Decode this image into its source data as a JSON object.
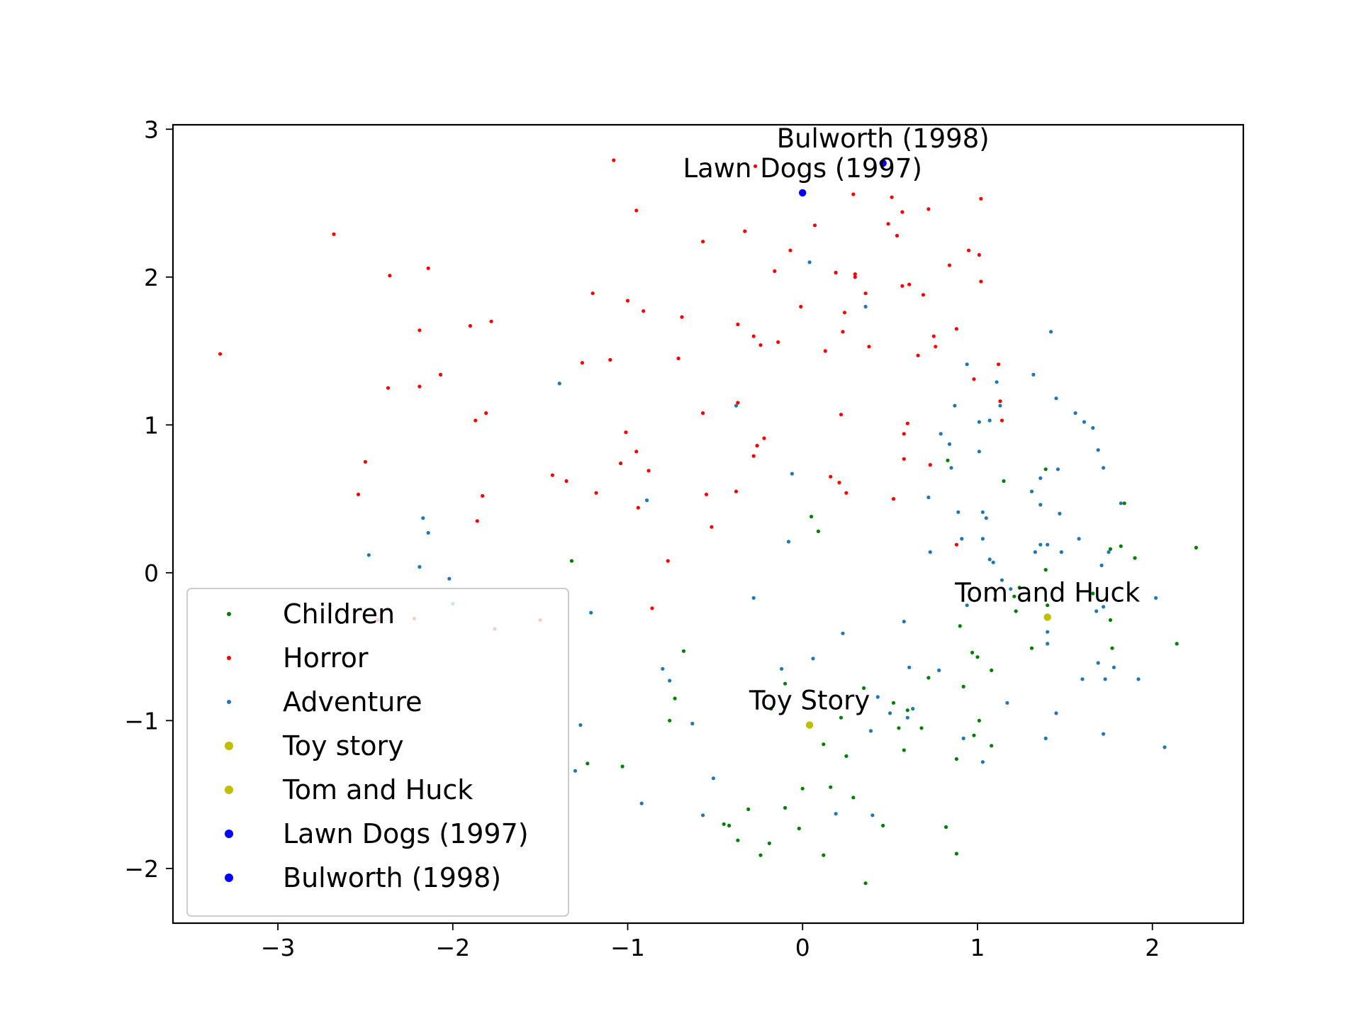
{
  "chart_data": {
    "type": "scatter",
    "title": "",
    "xlabel": "",
    "ylabel": "",
    "xlim": [
      -3.6,
      2.52
    ],
    "ylim": [
      -2.37,
      3.03
    ],
    "xticks": [
      -3,
      -2,
      -1,
      0,
      1,
      2
    ],
    "yticks": [
      -2,
      -1,
      0,
      1,
      2,
      3
    ],
    "xtick_labels": [
      "−3",
      "−2",
      "−1",
      "0",
      "1",
      "2"
    ],
    "ytick_labels": [
      "−2",
      "−1",
      "0",
      "1",
      "2",
      "3"
    ],
    "grid": false,
    "legend_position": "lower-left",
    "series": [
      {
        "name": "Children",
        "color": "#008000",
        "marker_size": "small",
        "points": [
          [
            0.05,
            0.38
          ],
          [
            0.09,
            0.28
          ],
          [
            -1.32,
            0.08
          ],
          [
            -0.68,
            -0.53
          ],
          [
            -0.76,
            -1.0
          ],
          [
            -0.73,
            -0.85
          ],
          [
            -0.1,
            -0.75
          ],
          [
            0.35,
            -0.78
          ],
          [
            0.52,
            -0.88
          ],
          [
            0.6,
            -0.93
          ],
          [
            0.22,
            -0.98
          ],
          [
            0.55,
            -1.05
          ],
          [
            0.68,
            -1.05
          ],
          [
            0.58,
            -1.2
          ],
          [
            0.12,
            -1.16
          ],
          [
            0.25,
            -1.24
          ],
          [
            -1.23,
            -1.29
          ],
          [
            -1.03,
            -1.31
          ],
          [
            0.0,
            -1.46
          ],
          [
            0.16,
            -1.45
          ],
          [
            0.29,
            -1.52
          ],
          [
            -0.1,
            -1.59
          ],
          [
            -0.31,
            -1.6
          ],
          [
            -0.45,
            -1.7
          ],
          [
            -0.42,
            -1.71
          ],
          [
            -0.02,
            -1.73
          ],
          [
            -0.37,
            -1.81
          ],
          [
            -0.19,
            -1.83
          ],
          [
            -0.24,
            -1.91
          ],
          [
            0.12,
            -1.91
          ],
          [
            0.36,
            -2.1
          ],
          [
            0.46,
            -1.71
          ],
          [
            0.82,
            -1.72
          ],
          [
            0.88,
            -1.9
          ],
          [
            0.83,
            0.76
          ],
          [
            1.15,
            0.62
          ],
          [
            1.39,
            0.7
          ],
          [
            1.84,
            0.47
          ],
          [
            1.82,
            0.18
          ],
          [
            1.76,
            0.16
          ],
          [
            1.9,
            0.1
          ],
          [
            2.25,
            0.17
          ],
          [
            1.39,
            0.02
          ],
          [
            1.24,
            -0.1
          ],
          [
            1.21,
            -0.16
          ],
          [
            1.22,
            -0.26
          ],
          [
            1.4,
            -0.22
          ],
          [
            1.66,
            -0.14
          ],
          [
            1.76,
            -0.32
          ],
          [
            1.77,
            -0.51
          ],
          [
            2.14,
            -0.48
          ],
          [
            1.31,
            -0.51
          ],
          [
            0.9,
            -0.36
          ],
          [
            0.97,
            -0.54
          ],
          [
            1.0,
            -0.57
          ],
          [
            1.08,
            -0.66
          ],
          [
            0.72,
            -0.71
          ],
          [
            0.92,
            -0.77
          ],
          [
            1.01,
            -1.0
          ],
          [
            0.98,
            -1.1
          ],
          [
            0.88,
            -1.26
          ],
          [
            1.08,
            -1.17
          ],
          [
            -0.18,
            -0.92
          ]
        ]
      },
      {
        "name": "Horror",
        "color": "#ff0000",
        "marker_size": "small",
        "points": [
          [
            -3.33,
            1.48
          ],
          [
            -2.68,
            2.29
          ],
          [
            -2.36,
            2.01
          ],
          [
            -2.14,
            2.06
          ],
          [
            -2.19,
            1.64
          ],
          [
            -2.37,
            1.25
          ],
          [
            -2.19,
            1.26
          ],
          [
            -2.07,
            1.34
          ],
          [
            -1.9,
            1.67
          ],
          [
            -1.78,
            1.7
          ],
          [
            -1.81,
            1.08
          ],
          [
            -1.87,
            1.03
          ],
          [
            -2.5,
            0.75
          ],
          [
            -2.54,
            0.53
          ],
          [
            -1.83,
            0.52
          ],
          [
            -1.86,
            0.35
          ],
          [
            -2.7,
            -0.22
          ],
          [
            -2.43,
            -0.32
          ],
          [
            -2.22,
            -0.31
          ],
          [
            -1.76,
            -0.38
          ],
          [
            -1.5,
            -0.32
          ],
          [
            -1.08,
            2.79
          ],
          [
            -0.95,
            2.45
          ],
          [
            -0.57,
            2.24
          ],
          [
            -1.2,
            1.89
          ],
          [
            -1.0,
            1.84
          ],
          [
            -0.91,
            1.77
          ],
          [
            -0.69,
            1.73
          ],
          [
            -1.26,
            1.42
          ],
          [
            -1.1,
            1.44
          ],
          [
            -0.71,
            1.45
          ],
          [
            -0.37,
            1.15
          ],
          [
            -0.57,
            1.08
          ],
          [
            -1.01,
            0.95
          ],
          [
            -0.95,
            0.82
          ],
          [
            -1.04,
            0.74
          ],
          [
            -0.88,
            0.69
          ],
          [
            -1.43,
            0.66
          ],
          [
            -1.35,
            0.62
          ],
          [
            -1.18,
            0.54
          ],
          [
            -0.94,
            0.44
          ],
          [
            -0.55,
            0.53
          ],
          [
            -0.38,
            0.55
          ],
          [
            -0.52,
            0.31
          ],
          [
            -0.77,
            0.08
          ],
          [
            -0.86,
            -0.24
          ],
          [
            -0.27,
            2.75
          ],
          [
            -0.33,
            2.31
          ],
          [
            0.29,
            2.56
          ],
          [
            0.51,
            2.54
          ],
          [
            0.57,
            2.44
          ],
          [
            0.72,
            2.46
          ],
          [
            1.02,
            2.53
          ],
          [
            0.07,
            2.35
          ],
          [
            0.49,
            2.36
          ],
          [
            0.54,
            2.28
          ],
          [
            -0.07,
            2.18
          ],
          [
            0.95,
            2.18
          ],
          [
            1.01,
            2.15
          ],
          [
            -0.16,
            2.04
          ],
          [
            0.19,
            2.03
          ],
          [
            0.3,
            2.0
          ],
          [
            0.3,
            2.02
          ],
          [
            0.57,
            1.94
          ],
          [
            0.61,
            1.95
          ],
          [
            0.84,
            2.08
          ],
          [
            1.02,
            1.97
          ],
          [
            0.36,
            1.89
          ],
          [
            0.69,
            1.88
          ],
          [
            -0.01,
            1.8
          ],
          [
            0.24,
            1.76
          ],
          [
            -0.37,
            1.68
          ],
          [
            -0.28,
            1.6
          ],
          [
            -0.24,
            1.54
          ],
          [
            -0.14,
            1.56
          ],
          [
            0.23,
            1.63
          ],
          [
            0.88,
            1.65
          ],
          [
            0.75,
            1.6
          ],
          [
            0.76,
            1.53
          ],
          [
            0.13,
            1.5
          ],
          [
            0.38,
            1.53
          ],
          [
            0.66,
            1.47
          ],
          [
            1.12,
            1.41
          ],
          [
            0.98,
            1.31
          ],
          [
            1.13,
            1.16
          ],
          [
            0.22,
            1.07
          ],
          [
            0.58,
            0.94
          ],
          [
            0.6,
            1.01
          ],
          [
            -0.22,
            0.91
          ],
          [
            -0.26,
            0.86
          ],
          [
            -0.28,
            0.79
          ],
          [
            0.58,
            0.77
          ],
          [
            0.73,
            0.73
          ],
          [
            1.14,
            1.03
          ],
          [
            0.16,
            0.65
          ],
          [
            0.21,
            0.61
          ],
          [
            0.25,
            0.54
          ],
          [
            0.52,
            0.5
          ],
          [
            0.88,
            0.19
          ]
        ]
      },
      {
        "name": "Adventure",
        "color": "#1f77b4",
        "marker_size": "small",
        "points": [
          [
            0.04,
            2.1
          ],
          [
            0.36,
            1.8
          ],
          [
            -1.39,
            1.28
          ],
          [
            -0.38,
            1.13
          ],
          [
            -0.06,
            0.67
          ],
          [
            -0.89,
            0.49
          ],
          [
            -2.17,
            0.37
          ],
          [
            -2.14,
            0.27
          ],
          [
            -2.48,
            0.12
          ],
          [
            -2.19,
            0.04
          ],
          [
            -2.02,
            -0.04
          ],
          [
            -2.0,
            -0.21
          ],
          [
            -1.21,
            -0.27
          ],
          [
            -0.28,
            -0.17
          ],
          [
            -0.08,
            0.21
          ],
          [
            0.23,
            -0.41
          ],
          [
            0.06,
            -0.58
          ],
          [
            -0.12,
            -0.65
          ],
          [
            -0.8,
            -0.65
          ],
          [
            -0.76,
            -0.73
          ],
          [
            -0.63,
            -1.02
          ],
          [
            -1.27,
            -1.03
          ],
          [
            -1.3,
            -1.34
          ],
          [
            -0.51,
            -1.39
          ],
          [
            -0.92,
            -1.56
          ],
          [
            -0.57,
            -1.64
          ],
          [
            0.19,
            -1.63
          ],
          [
            0.4,
            -1.64
          ],
          [
            0.43,
            -0.84
          ],
          [
            0.6,
            -0.98
          ],
          [
            0.39,
            -1.07
          ],
          [
            0.5,
            -0.95
          ],
          [
            0.63,
            -0.92
          ],
          [
            0.61,
            -0.64
          ],
          [
            0.78,
            -0.66
          ],
          [
            0.58,
            -0.33
          ],
          [
            0.72,
            0.51
          ],
          [
            0.73,
            0.14
          ],
          [
            0.89,
            0.41
          ],
          [
            0.91,
            0.23
          ],
          [
            1.03,
            0.41
          ],
          [
            1.05,
            0.37
          ],
          [
            1.03,
            0.23
          ],
          [
            1.07,
            0.09
          ],
          [
            1.09,
            0.07
          ],
          [
            1.14,
            -0.05
          ],
          [
            1.19,
            -0.11
          ],
          [
            0.94,
            -0.22
          ],
          [
            1.1,
            -0.18
          ],
          [
            1.33,
            0.14
          ],
          [
            1.36,
            0.19
          ],
          [
            1.4,
            0.19
          ],
          [
            1.48,
            0.14
          ],
          [
            1.4,
            -0.4
          ],
          [
            1.4,
            -0.48
          ],
          [
            1.47,
            0.4
          ],
          [
            1.58,
            0.23
          ],
          [
            1.71,
            0.05
          ],
          [
            1.75,
            0.14
          ],
          [
            1.68,
            -0.26
          ],
          [
            1.72,
            -0.23
          ],
          [
            1.69,
            -0.61
          ],
          [
            1.6,
            -0.72
          ],
          [
            1.73,
            -0.72
          ],
          [
            1.78,
            -0.64
          ],
          [
            1.92,
            -0.72
          ],
          [
            2.02,
            -0.17
          ],
          [
            1.82,
            0.47
          ],
          [
            1.72,
            0.71
          ],
          [
            1.69,
            0.83
          ],
          [
            1.66,
            0.98
          ],
          [
            1.61,
            1.02
          ],
          [
            1.56,
            1.08
          ],
          [
            1.45,
            1.18
          ],
          [
            1.42,
            1.63
          ],
          [
            1.32,
            1.34
          ],
          [
            1.31,
            0.55
          ],
          [
            1.36,
            0.46
          ],
          [
            1.36,
            0.64
          ],
          [
            1.46,
            0.7
          ],
          [
            0.94,
            1.41
          ],
          [
            1.11,
            1.29
          ],
          [
            1.13,
            1.13
          ],
          [
            0.87,
            1.13
          ],
          [
            0.79,
            0.94
          ],
          [
            0.84,
            0.87
          ],
          [
            1.01,
            0.82
          ],
          [
            1.01,
            1.02
          ],
          [
            1.07,
            1.03
          ],
          [
            0.85,
            0.71
          ],
          [
            1.17,
            -0.88
          ],
          [
            1.45,
            -0.95
          ],
          [
            1.39,
            -1.12
          ],
          [
            1.72,
            -1.09
          ],
          [
            2.07,
            -1.18
          ],
          [
            0.92,
            -1.12
          ],
          [
            1.03,
            -1.28
          ]
        ]
      },
      {
        "name": "Toy story",
        "color": "#bfbf00",
        "marker_size": "large",
        "points": [
          [
            0.04,
            -1.03
          ]
        ],
        "annotation": "Toy Story"
      },
      {
        "name": "Tom and Huck",
        "color": "#bfbf00",
        "marker_size": "large",
        "points": [
          [
            1.4,
            -0.3
          ]
        ],
        "annotation": "Tom and Huck"
      },
      {
        "name": "Lawn Dogs (1997)",
        "color": "#0000ff",
        "marker_size": "large",
        "points": [
          [
            0.0,
            2.57
          ]
        ],
        "annotation": "Lawn Dogs (1997)"
      },
      {
        "name": "Bulworth (1998)",
        "color": "#0000ff",
        "marker_size": "large",
        "points": [
          [
            0.46,
            2.77
          ]
        ],
        "annotation": "Bulworth (1998)"
      }
    ]
  }
}
